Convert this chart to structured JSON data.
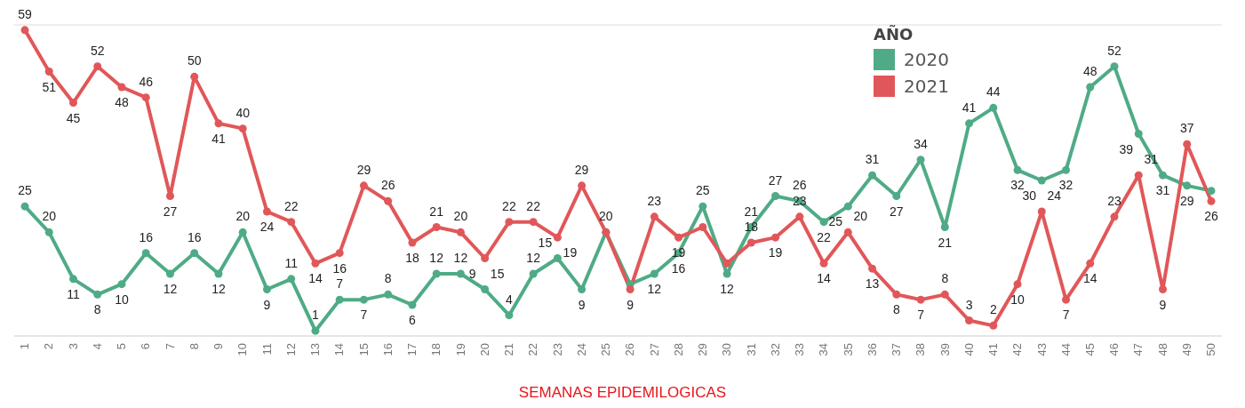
{
  "chart_data": {
    "type": "line",
    "xlabel": "SEMANAS EPIDEMILOGICAS",
    "legend_title": "AÑO",
    "categories": [
      "1",
      "2",
      "3",
      "4",
      "5",
      "6",
      "7",
      "8",
      "9",
      "10",
      "11",
      "12",
      "13",
      "14",
      "15",
      "16",
      "17",
      "18",
      "19",
      "20",
      "21",
      "22",
      "23",
      "24",
      "25",
      "26",
      "27",
      "28",
      "29",
      "30",
      "31",
      "32",
      "33",
      "34",
      "35",
      "36",
      "37",
      "38",
      "39",
      "40",
      "41",
      "42",
      "43",
      "44",
      "45",
      "46",
      "47",
      "48",
      "49",
      "50"
    ],
    "series": [
      {
        "name": "2020",
        "color": "#4fab86",
        "values": [
          25,
          20,
          11,
          8,
          10,
          16,
          12,
          16,
          12,
          20,
          9,
          11,
          1,
          7,
          7,
          8,
          6,
          12,
          12,
          9,
          4,
          12,
          15,
          9,
          20,
          10,
          12,
          16,
          25,
          12,
          21,
          27,
          26,
          22,
          25,
          31,
          27,
          34,
          21,
          41,
          44,
          32,
          30,
          32,
          48,
          52,
          39,
          31,
          29,
          28
        ],
        "value_labels": [
          "25",
          "20",
          "11",
          "8",
          "10",
          "16",
          "12",
          "16",
          "12",
          "20",
          "9",
          "11",
          "1",
          "7",
          "7",
          "8",
          "6",
          "12",
          "12",
          "9",
          "4",
          "12",
          "15",
          "9",
          "20",
          null,
          "12",
          "16",
          "25",
          "12",
          "21",
          "27",
          "26",
          "22",
          "25",
          "31",
          "27",
          "34",
          "21",
          "41",
          "44",
          "32",
          "30",
          "32",
          "48",
          "52",
          "39",
          "31",
          "29",
          null
        ]
      },
      {
        "name": "2021",
        "color": "#e15759",
        "values": [
          59,
          51,
          45,
          52,
          48,
          46,
          27,
          50,
          41,
          40,
          24,
          22,
          14,
          16,
          29,
          26,
          18,
          21,
          20,
          15,
          22,
          22,
          19,
          29,
          20,
          9,
          23,
          19,
          21,
          14,
          18,
          19,
          23,
          14,
          20,
          13,
          8,
          7,
          8,
          3,
          2,
          10,
          24,
          7,
          14,
          23,
          31,
          9,
          37,
          26
        ],
        "value_labels": [
          "59",
          "51",
          "45",
          "52",
          "48",
          "46",
          "27",
          "50",
          "41",
          "40",
          "24",
          "22",
          "14",
          "16",
          "29",
          "26",
          "18",
          "21",
          "20",
          "15",
          "22",
          "22",
          "19",
          "29",
          null,
          "9",
          "23",
          "19",
          null,
          null,
          "18",
          "19",
          "23",
          "14",
          "20",
          "13",
          "8",
          "7",
          "8",
          "3",
          "2",
          "10",
          "24",
          "7",
          "14",
          "23",
          "31",
          "9",
          "37",
          "26"
        ]
      }
    ],
    "ylim": [
      0,
      60
    ],
    "tick_labels": "x",
    "grid": "y",
    "legend": "top right",
    "marker": "circle",
    "line_style": "solid"
  }
}
